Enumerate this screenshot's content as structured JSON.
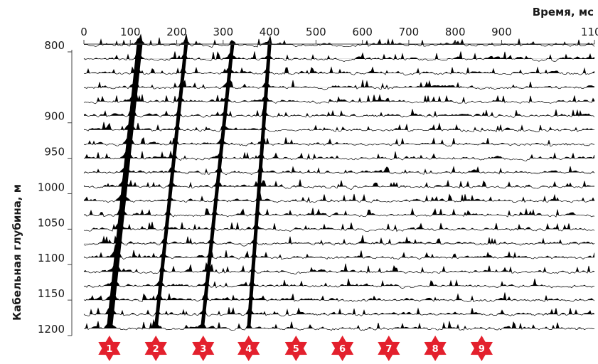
{
  "chart_data": {
    "type": "line",
    "title": "",
    "xlabel": "Время, мс",
    "ylabel": "Кабельная глубина, м",
    "x_ticks": [
      0,
      100,
      200,
      300,
      400,
      500,
      600,
      700,
      800,
      900,
      1100
    ],
    "y_ticks": [
      800,
      900,
      950,
      1000,
      1050,
      1100,
      1150,
      1200
    ],
    "xlim": [
      0,
      1100
    ],
    "ylim": [
      785,
      1200
    ],
    "trace_depths": [
      790,
      810,
      830,
      850,
      870,
      890,
      910,
      930,
      950,
      970,
      990,
      1010,
      1030,
      1050,
      1070,
      1090,
      1110,
      1130,
      1150,
      1170,
      1190
    ],
    "first_arrival": {
      "depth": [
        790,
        1190
      ],
      "time": [
        120,
        55
      ]
    },
    "wave_events": [
      {
        "label": "2",
        "depth": [
          790,
          1190
        ],
        "time": [
          220,
          155
        ]
      },
      {
        "label": "3",
        "depth": [
          790,
          1190
        ],
        "time": [
          320,
          255
        ]
      },
      {
        "label": "4",
        "depth": [
          790,
          1190
        ],
        "time": [
          400,
          355
        ]
      }
    ],
    "markers": [
      {
        "label": "1",
        "time": 55
      },
      {
        "label": "2",
        "time": 155
      },
      {
        "label": "3",
        "time": 257
      },
      {
        "label": "4",
        "time": 355
      },
      {
        "label": "5",
        "time": 457
      },
      {
        "label": "6",
        "time": 557
      },
      {
        "label": "7",
        "time": 657
      },
      {
        "label": "8",
        "time": 757
      },
      {
        "label": "9",
        "time": 857
      }
    ],
    "marker_color": "#e3202d",
    "grid": false
  }
}
